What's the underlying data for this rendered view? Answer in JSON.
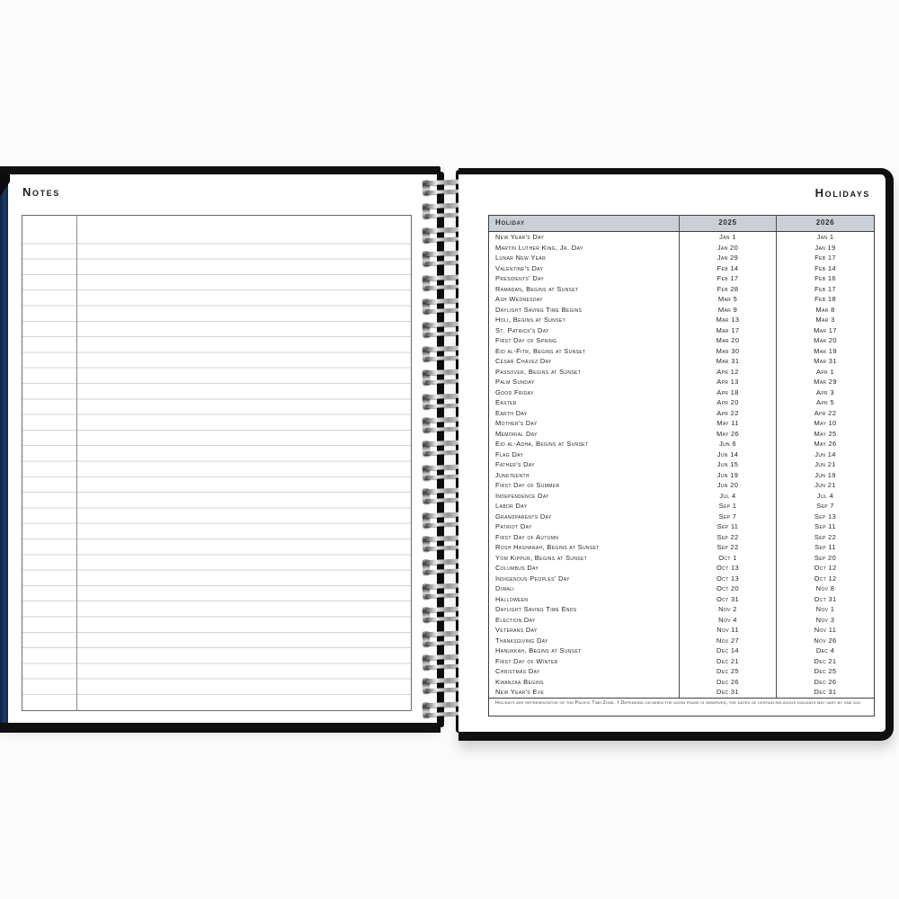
{
  "left_page": {
    "title": "Notes"
  },
  "right_page": {
    "title": "Holidays",
    "table": {
      "headers": [
        "Holiday",
        "2025",
        "2026"
      ],
      "rows": [
        [
          "New Year's Day",
          "Jan 1",
          "Jan 1"
        ],
        [
          "Martin Luther King, Jr. Day",
          "Jan 20",
          "Jan 19"
        ],
        [
          "Lunar New Year",
          "Jan 29",
          "Feb 17"
        ],
        [
          "Valentine's Day",
          "Feb 14",
          "Feb 14"
        ],
        [
          "Presidents' Day",
          "Feb 17",
          "Feb 16"
        ],
        [
          "Ramadan, Begins at Sunset",
          "Feb 28",
          "Feb 17"
        ],
        [
          "Ash Wednesday",
          "Mar 5",
          "Feb 18"
        ],
        [
          "Daylight Saving Time Begins",
          "Mar 9",
          "Mar 8"
        ],
        [
          "Holi, Begins at Sunset",
          "Mar 13",
          "Mar 3"
        ],
        [
          "St. Patrick's Day",
          "Mar 17",
          "Mar 17"
        ],
        [
          "First Day of Spring",
          "Mar 20",
          "Mar 20"
        ],
        [
          "Eid al-Fitr, Begins at Sunset",
          "Mar 30",
          "Mar 19"
        ],
        [
          "César Chávez Day",
          "Mar 31",
          "Mar 31"
        ],
        [
          "Passover, Begins at Sunset",
          "Apr 12",
          "Apr 1"
        ],
        [
          "Palm Sunday",
          "Apr 13",
          "Mar 29"
        ],
        [
          "Good Friday",
          "Apr 18",
          "Apr 3"
        ],
        [
          "Easter",
          "Apr 20",
          "Apr 5"
        ],
        [
          "Earth Day",
          "Apr 22",
          "Apr 22"
        ],
        [
          "Mother's Day",
          "May 11",
          "May 10"
        ],
        [
          "Memorial Day",
          "May 26",
          "May 25"
        ],
        [
          "Eid al-Adha, Begins at Sunset",
          "Jun 6",
          "May 26"
        ],
        [
          "Flag Day",
          "Jun 14",
          "Jun 14"
        ],
        [
          "Father's Day",
          "Jun 15",
          "Jun 21"
        ],
        [
          "Juneteenth",
          "Jun 19",
          "Jun 19"
        ],
        [
          "First Day of Summer",
          "Jun 20",
          "Jun 21"
        ],
        [
          "Independence Day",
          "Jul 4",
          "Jul 4"
        ],
        [
          "Labor Day",
          "Sep 1",
          "Sep 7"
        ],
        [
          "Grandparents Day",
          "Sep 7",
          "Sep 13"
        ],
        [
          "Patriot Day",
          "Sep 11",
          "Sep 11"
        ],
        [
          "First Day of Autumn",
          "Sep 22",
          "Sep 22"
        ],
        [
          "Rosh Hashanah, Begins at Sunset",
          "Sep 22",
          "Sep 11"
        ],
        [
          "Yom Kippur, Begins at Sunset",
          "Oct 1",
          "Sep 20"
        ],
        [
          "Columbus Day",
          "Oct 13",
          "Oct 12"
        ],
        [
          "Indigenous Peoples' Day",
          "Oct 13",
          "Oct 12"
        ],
        [
          "Diwali",
          "Oct 20",
          "Nov 8"
        ],
        [
          "Halloween",
          "Oct 31",
          "Oct 31"
        ],
        [
          "Daylight Saving Time Ends",
          "Nov 2",
          "Nov 1"
        ],
        [
          "Election Day",
          "Nov 4",
          "Nov 3"
        ],
        [
          "Veterans Day",
          "Nov 11",
          "Nov 11"
        ],
        [
          "Thanksgiving Day",
          "Nov 27",
          "Nov 26"
        ],
        [
          "Hanukkah, Begins at Sunset",
          "Dec 14",
          "Dec 4"
        ],
        [
          "First Day of Winter",
          "Dec 21",
          "Dec 21"
        ],
        [
          "Christmas Day",
          "Dec 25",
          "Dec 25"
        ],
        [
          "Kwanzaa Begins",
          "Dec 26",
          "Dec 26"
        ],
        [
          "New Year's Eve",
          "Dec 31",
          "Dec 31"
        ]
      ],
      "footnote": "Holidays are representative of the Pacific Time Zone.  †  Depending on when the moon phase is observed, the dates of certain religious holidays may vary by one day."
    }
  },
  "colors": {
    "cover_black": "#101010",
    "cover_navy": "#1b3a66",
    "table_header_bg": "#cbd0d8",
    "rule_line": "#d3d3d3"
  }
}
